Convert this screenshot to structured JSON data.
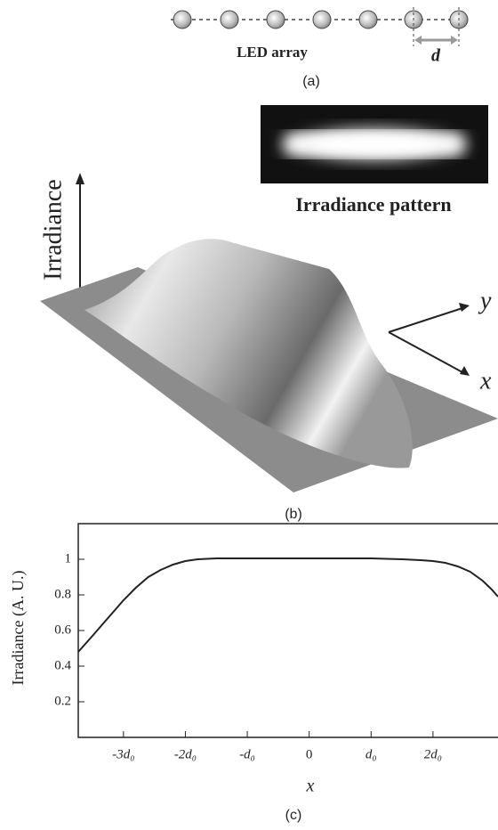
{
  "panel_a": {
    "label": "LED array",
    "spacing": "d",
    "caption": "(a)"
  },
  "panel_b": {
    "inset_label": "Irradiance pattern",
    "vertical_axis": "Irradiance",
    "axis_y": "y",
    "axis_x": "x",
    "caption": "(b)"
  },
  "chart_data": {
    "type": "line",
    "caption": "(c)",
    "xlabel": "x",
    "ylabel": "Irradiance (A. U.)",
    "x": [
      -3.73,
      -3.5,
      -3.3,
      -3.1,
      -3.0,
      -2.8,
      -2.6,
      -2.4,
      -2.2,
      -2.0,
      -1.8,
      -1.5,
      -1.0,
      -0.5,
      0,
      0.5,
      1.0,
      1.5,
      1.8,
      2.0,
      2.2,
      2.4,
      2.6,
      2.8,
      2.95,
      3.05
    ],
    "series": [
      {
        "name": "Irradiance",
        "color": "#222222",
        "values": [
          0.48,
          0.57,
          0.65,
          0.73,
          0.77,
          0.84,
          0.9,
          0.94,
          0.97,
          0.99,
          1.0,
          1.005,
          1.005,
          1.005,
          1.005,
          1.005,
          1.005,
          1.0,
          0.995,
          0.99,
          0.98,
          0.96,
          0.93,
          0.88,
          0.83,
          0.79
        ]
      }
    ],
    "xlim": [
      -3.73,
      3.05
    ],
    "ylim": [
      0,
      1.2
    ],
    "xticks": [
      {
        "value": -3,
        "label": "-3d₀"
      },
      {
        "value": -2,
        "label": "-2d₀"
      },
      {
        "value": -1,
        "label": "-d₀"
      },
      0,
      {
        "value": 1,
        "label": "d₀"
      },
      {
        "value": 2,
        "label": "2d₀"
      }
    ],
    "yticks": [
      0.2,
      0.4,
      0.6,
      0.8,
      1
    ]
  }
}
